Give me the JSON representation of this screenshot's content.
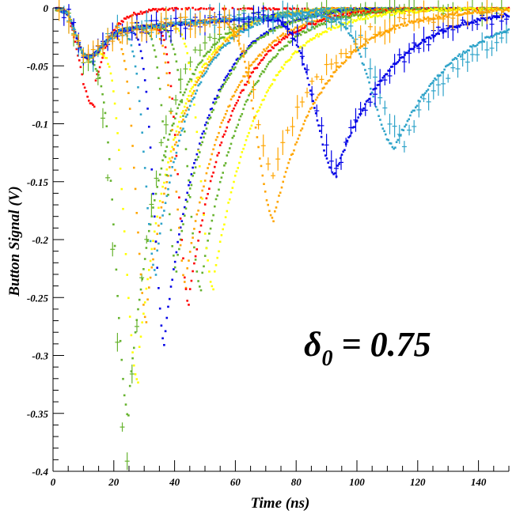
{
  "chart_data": {
    "type": "scatter",
    "xlabel": "Time (ns)",
    "ylabel": "Button Signal (V)",
    "xlim": [
      0,
      150
    ],
    "ylim": [
      -0.4,
      0
    ],
    "x_ticks": [
      "0",
      "20",
      "40",
      "60",
      "80",
      "100",
      "120",
      "140"
    ],
    "y_ticks": [
      "0",
      "-0.05",
      "-0.1",
      "-0.15",
      "-0.2",
      "-0.25",
      "-0.3",
      "-0.35",
      "-0.4"
    ],
    "annotation": {
      "symbol": "δ",
      "subscript": "0",
      "rest": " = 0.75"
    },
    "grid": false,
    "legend": "none",
    "series": [
      {
        "color": "#ff0000",
        "style": "dense",
        "peak_x": 14,
        "peak_y": -0.045,
        "rise": 5,
        "tail": 6
      },
      {
        "color": "#66b32e",
        "style": "errorbar",
        "peak_x": 24.5,
        "peak_y": -0.368,
        "rise": 6,
        "tail": 10
      },
      {
        "color": "#66b32e",
        "style": "dense",
        "peak_x": 25,
        "peak_y": -0.335,
        "rise": 6,
        "tail": 12
      },
      {
        "color": "#ffff00",
        "style": "dense",
        "peak_x": 28,
        "peak_y": -0.305,
        "rise": 6,
        "tail": 12
      },
      {
        "color": "#ffa500",
        "style": "dense",
        "peak_x": 31,
        "peak_y": -0.255,
        "rise": 5,
        "tail": 12
      },
      {
        "color": "#2ea3c9",
        "style": "dense",
        "peak_x": 34,
        "peak_y": -0.215,
        "rise": 5,
        "tail": 12
      },
      {
        "color": "#0000e6",
        "style": "dense",
        "peak_x": 37,
        "peak_y": -0.278,
        "rise": 5,
        "tail": 13
      },
      {
        "color": "#66b32e",
        "style": "dense",
        "peak_x": 41,
        "peak_y": -0.215,
        "rise": 5,
        "tail": 13
      },
      {
        "color": "#ffa500",
        "style": "dense",
        "peak_x": 44,
        "peak_y": -0.228,
        "rise": 5,
        "tail": 14
      },
      {
        "color": "#ff0000",
        "style": "dense",
        "peak_x": 45,
        "peak_y": -0.245,
        "rise": 5,
        "tail": 14
      },
      {
        "color": "#66b32e",
        "style": "dense",
        "peak_x": 49,
        "peak_y": -0.232,
        "rise": 6,
        "tail": 14
      },
      {
        "color": "#ffff00",
        "style": "dense",
        "peak_x": 53,
        "peak_y": -0.232,
        "rise": 6,
        "tail": 15
      },
      {
        "color": "#ffa500",
        "style": "dense",
        "peak_x": 73,
        "peak_y": -0.176,
        "rise": 8,
        "tail": 17
      },
      {
        "color": "#0000e6",
        "style": "dense",
        "peak_x": 93.5,
        "peak_y": -0.139,
        "rise": 10,
        "tail": 18
      },
      {
        "color": "#2ea3c9",
        "style": "dense",
        "peak_x": 113,
        "peak_y": -0.117,
        "rise": 11,
        "tail": 20
      },
      {
        "color": "#2ea3c9",
        "style": "errorbar",
        "peak_x": 116,
        "peak_y": -0.11,
        "rise": 12,
        "tail": 22
      },
      {
        "color": "#0000e6",
        "style": "errorbar",
        "peak_x": 94,
        "peak_y": -0.135,
        "rise": 10,
        "tail": 18
      },
      {
        "color": "#ffa500",
        "style": "errorbar",
        "peak_x": 73,
        "peak_y": -0.14,
        "rise": 8,
        "tail": 17
      }
    ]
  }
}
